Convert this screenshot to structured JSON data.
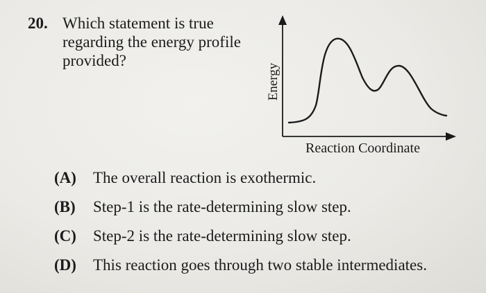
{
  "question": {
    "number": "20.",
    "stem_lines": [
      "Which statement is true",
      "regarding the energy profile",
      "provided?"
    ]
  },
  "figure": {
    "y_axis_label": "Energy",
    "x_axis_label": "Reaction Coordinate",
    "curve": {
      "description_shape": "two humps, second lower; product below reactant? no — start level low, end level slightly higher",
      "points": []
    }
  },
  "choices": [
    {
      "letter": "(A)",
      "text": "The overall reaction is exothermic."
    },
    {
      "letter": "(B)",
      "text": "Step-1 is the rate-determining slow step."
    },
    {
      "letter": "(C)",
      "text": "Step-2 is the rate-determining slow step."
    },
    {
      "letter": "(D)",
      "text": "This reaction goes through two stable intermediates."
    }
  ]
}
